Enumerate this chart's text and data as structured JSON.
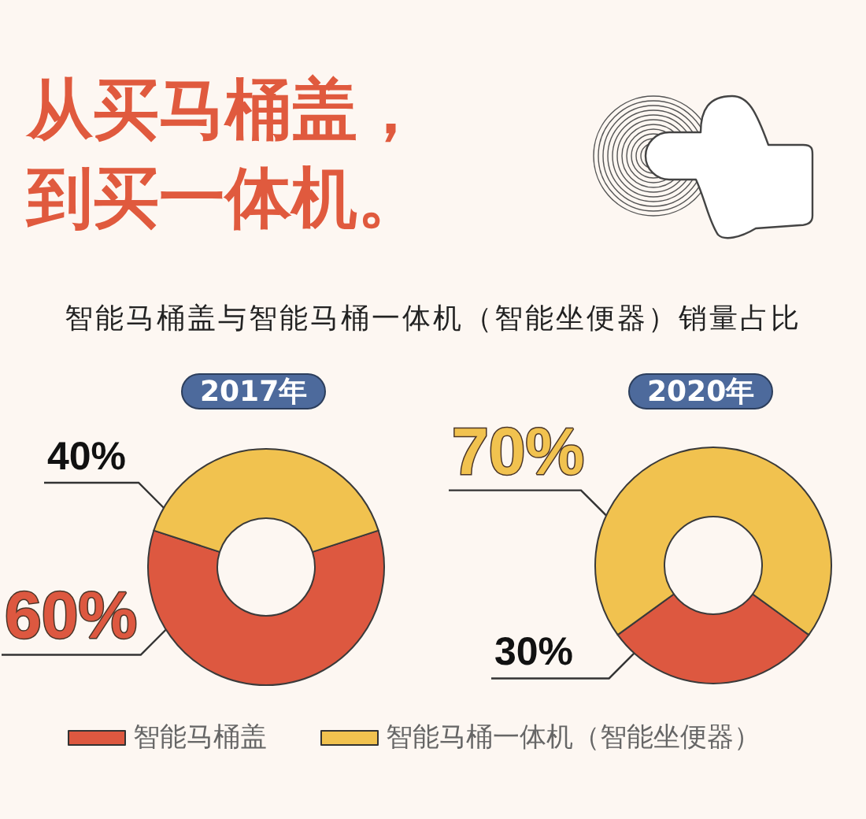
{
  "chart_data": {
    "type": "donut",
    "title": "从买马桶盖，到买一体机。",
    "subtitle": "智能马桶盖与智能马桶一体机（智能坐便器）销量占比",
    "categories": [
      "智能马桶盖",
      "智能马桶一体机（智能坐便器）"
    ],
    "colors": [
      "#dd5840",
      "#f1c24f"
    ],
    "series": [
      {
        "name": "2017年",
        "values": [
          60,
          40
        ],
        "value_labels": [
          "60%",
          "40%"
        ]
      },
      {
        "name": "2020年",
        "values": [
          30,
          70
        ],
        "value_labels": [
          "30%",
          "70%"
        ]
      }
    ],
    "legend": "bottom"
  }
}
